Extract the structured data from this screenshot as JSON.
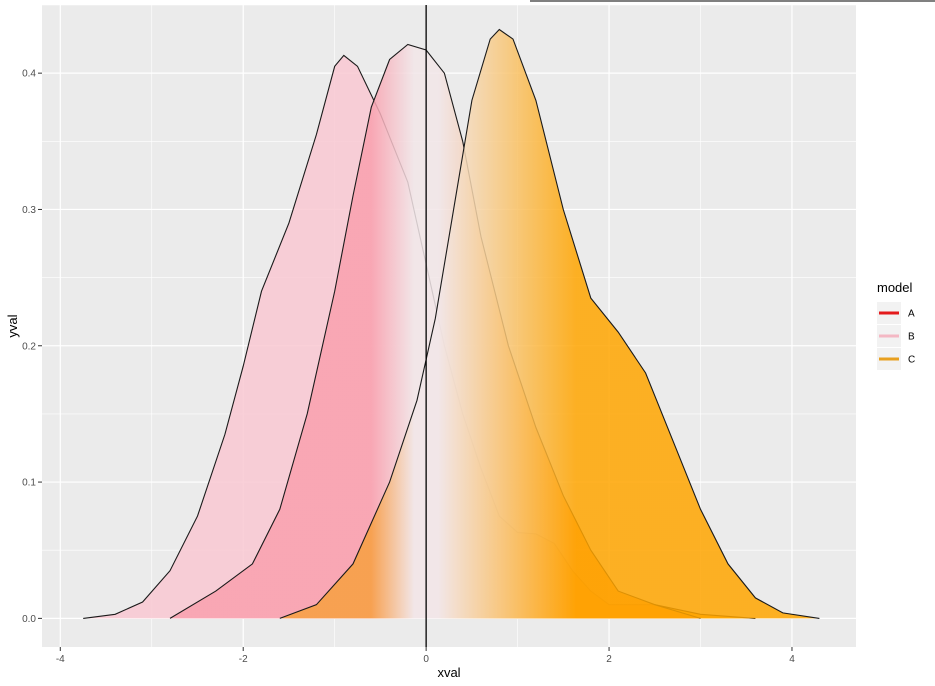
{
  "chart_data": {
    "type": "area",
    "xlabel": "xval",
    "ylabel": "yval",
    "xlim": [
      -4.2,
      4.7
    ],
    "ylim": [
      -0.021,
      0.45
    ],
    "x_ticks": [
      -4,
      -2,
      0,
      2,
      4
    ],
    "x_tick_labels": [
      "-4",
      "-2",
      "0",
      "2",
      "4"
    ],
    "y_ticks": [
      0.0,
      0.1,
      0.2,
      0.3,
      0.4
    ],
    "y_tick_labels": [
      "0.0",
      "0.1",
      "0.2",
      "0.3",
      "0.4"
    ],
    "grid": true,
    "vline_x": 0,
    "legend": {
      "title": "model",
      "placement": "right",
      "items": [
        {
          "label": "A",
          "color": "#e41a1c"
        },
        {
          "label": "B",
          "color": "#f4b8c4"
        },
        {
          "label": "C",
          "color": "#e8a020"
        }
      ]
    },
    "series": [
      {
        "color_left": "#f9c8d2",
        "color_right": "#ffa500",
        "points": [
          [
            -3.75,
            0.0
          ],
          [
            -3.4,
            0.003
          ],
          [
            -3.1,
            0.012
          ],
          [
            -2.8,
            0.035
          ],
          [
            -2.5,
            0.075
          ],
          [
            -2.2,
            0.135
          ],
          [
            -2.0,
            0.185
          ],
          [
            -1.8,
            0.24
          ],
          [
            -1.5,
            0.29
          ],
          [
            -1.2,
            0.355
          ],
          [
            -1.0,
            0.405
          ],
          [
            -0.9,
            0.413
          ],
          [
            -0.75,
            0.405
          ],
          [
            -0.5,
            0.37
          ],
          [
            -0.2,
            0.32
          ],
          [
            0.0,
            0.26
          ],
          [
            0.2,
            0.2
          ],
          [
            0.4,
            0.15
          ],
          [
            0.6,
            0.11
          ],
          [
            0.8,
            0.075
          ],
          [
            1.0,
            0.063
          ],
          [
            1.2,
            0.062
          ],
          [
            1.4,
            0.055
          ],
          [
            1.6,
            0.035
          ],
          [
            1.8,
            0.02
          ],
          [
            2.0,
            0.01
          ],
          [
            2.5,
            0.01
          ],
          [
            3.0,
            0.003
          ],
          [
            3.6,
            0.0
          ]
        ]
      },
      {
        "color_left": "#f9a0ae",
        "color_right": "#ff8c1a",
        "points": [
          [
            -2.8,
            0.0
          ],
          [
            -2.3,
            0.02
          ],
          [
            -1.9,
            0.04
          ],
          [
            -1.6,
            0.08
          ],
          [
            -1.3,
            0.15
          ],
          [
            -1.0,
            0.24
          ],
          [
            -0.8,
            0.31
          ],
          [
            -0.6,
            0.375
          ],
          [
            -0.4,
            0.41
          ],
          [
            -0.2,
            0.421
          ],
          [
            0.0,
            0.417
          ],
          [
            0.2,
            0.4
          ],
          [
            0.4,
            0.35
          ],
          [
            0.6,
            0.28
          ],
          [
            0.9,
            0.2
          ],
          [
            1.2,
            0.14
          ],
          [
            1.5,
            0.09
          ],
          [
            1.8,
            0.05
          ],
          [
            2.1,
            0.02
          ],
          [
            2.5,
            0.01
          ],
          [
            3.0,
            0.0
          ]
        ]
      },
      {
        "color_left": "#f7a040",
        "color_right": "#ffa500",
        "points": [
          [
            -1.6,
            0.0
          ],
          [
            -1.2,
            0.01
          ],
          [
            -0.8,
            0.04
          ],
          [
            -0.4,
            0.1
          ],
          [
            -0.1,
            0.16
          ],
          [
            0.1,
            0.22
          ],
          [
            0.3,
            0.3
          ],
          [
            0.5,
            0.38
          ],
          [
            0.7,
            0.425
          ],
          [
            0.8,
            0.432
          ],
          [
            0.95,
            0.425
          ],
          [
            1.2,
            0.38
          ],
          [
            1.5,
            0.3
          ],
          [
            1.8,
            0.235
          ],
          [
            2.1,
            0.21
          ],
          [
            2.4,
            0.18
          ],
          [
            2.7,
            0.13
          ],
          [
            3.0,
            0.08
          ],
          [
            3.3,
            0.04
          ],
          [
            3.6,
            0.015
          ],
          [
            3.9,
            0.004
          ],
          [
            4.3,
            0.0
          ]
        ]
      }
    ]
  }
}
